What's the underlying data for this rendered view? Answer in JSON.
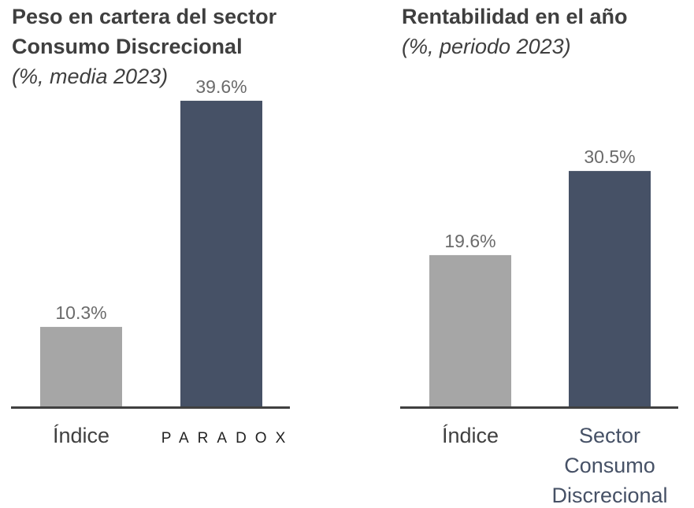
{
  "chart_data": [
    {
      "type": "bar",
      "title": "Peso en cartera del sector Consumo Discrecional",
      "title_lines": [
        "Peso en cartera del sector",
        "Consumo Discrecional"
      ],
      "subtitle": "(%, media 2023)",
      "categories": [
        "Índice",
        "PARADOX"
      ],
      "category_styles": [
        "text",
        "logo"
      ],
      "values": [
        10.3,
        39.6
      ],
      "value_labels": [
        "10.3%",
        "39.6%"
      ],
      "bar_colors": [
        "#a6a6a6",
        "#465166"
      ],
      "category_colors": [
        "#404040",
        "#222222"
      ],
      "ylim": [
        0,
        40
      ],
      "grid": false,
      "legend": "none"
    },
    {
      "type": "bar",
      "title": "Rentabilidad en el año",
      "title_lines": [
        "Rentabilidad en el año"
      ],
      "subtitle": "(%, periodo 2023)",
      "categories": [
        "Índice",
        "Sector Consumo Discrecional"
      ],
      "category_lines": [
        [
          "Índice"
        ],
        [
          "Sector",
          "Consumo",
          "Discrecional"
        ]
      ],
      "category_styles": [
        "text",
        "text"
      ],
      "values": [
        19.6,
        30.5
      ],
      "value_labels": [
        "19.6%",
        "30.5%"
      ],
      "bar_colors": [
        "#a6a6a6",
        "#465166"
      ],
      "category_colors": [
        "#404040",
        "#465166"
      ],
      "ylim": [
        0,
        40
      ],
      "grid": false,
      "legend": "none"
    }
  ],
  "colors": {
    "title": "#3f3f3f",
    "value_label": "#6b6b6b",
    "baseline": "#404040"
  }
}
